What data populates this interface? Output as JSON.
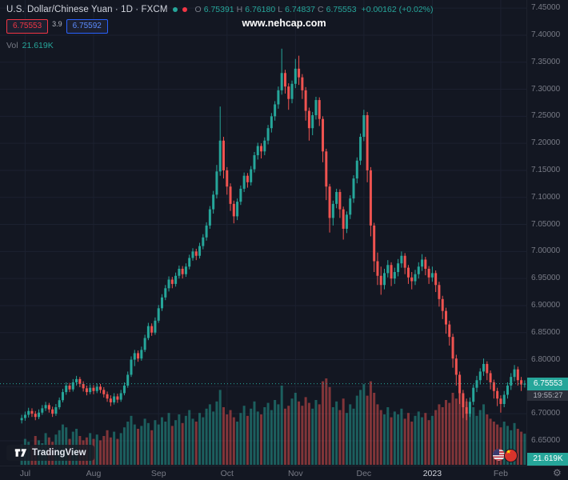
{
  "header": {
    "symbol_title": "U.S. Dollar/Chinese Yuan · 1D · FXCM",
    "ohlc": {
      "o_label": "O",
      "o": "6.75391",
      "h_label": "H",
      "h": "6.76180",
      "l_label": "L",
      "l": "6.74837",
      "c_label": "C",
      "c": "6.75553",
      "change": "+0.00162 (+0.02%)"
    },
    "sell_price": "6.75553",
    "spread": "3.9",
    "buy_price": "6.75592",
    "vol_label": "Vol",
    "vol_value": "21.619K"
  },
  "watermark": "www.nehcap.com",
  "logo": {
    "label": "TradingView"
  },
  "axis": {
    "last_price": "6.75553",
    "countdown": "19:55:27",
    "volume_badge": "21.619K"
  },
  "icons": {
    "settings_gear": "⚙",
    "star": "★"
  },
  "colors": {
    "bg": "#131722",
    "grid": "#1c2130",
    "up": "#26a69a",
    "down": "#ef5350",
    "text": "#787b86",
    "title": "#d1d4dc",
    "sell": "#f23645",
    "buy": "#2962ff"
  },
  "chart_data": {
    "type": "candlestick+volume",
    "symbol": "USDCNH",
    "timeframe": "1D",
    "exchange": "FXCM",
    "last_price": 6.75553,
    "y_ticks": [
      7.45,
      7.4,
      7.35,
      7.3,
      7.25,
      7.2,
      7.15,
      7.1,
      7.05,
      7.0,
      6.95,
      6.9,
      6.85,
      6.8,
      6.75,
      6.7,
      6.65
    ],
    "x_ticks": [
      {
        "label": "Jul",
        "index": 1
      },
      {
        "label": "Aug",
        "index": 21
      },
      {
        "label": "Sep",
        "index": 40
      },
      {
        "label": "Oct",
        "index": 60
      },
      {
        "label": "Nov",
        "index": 80
      },
      {
        "label": "Dec",
        "index": 100
      },
      {
        "label": "2023",
        "index": 120,
        "year": true
      },
      {
        "label": "Feb",
        "index": 140
      }
    ],
    "candles": [
      [
        6.688,
        6.698,
        6.682,
        6.692
      ],
      [
        6.692,
        6.704,
        6.687,
        6.698
      ],
      [
        6.698,
        6.711,
        6.693,
        6.705
      ],
      [
        6.705,
        6.71,
        6.694,
        6.7
      ],
      [
        6.7,
        6.705,
        6.688,
        6.694
      ],
      [
        6.694,
        6.708,
        6.69,
        6.702
      ],
      [
        6.702,
        6.716,
        6.698,
        6.71
      ],
      [
        6.71,
        6.722,
        6.705,
        6.716
      ],
      [
        6.716,
        6.72,
        6.702,
        6.708
      ],
      [
        6.708,
        6.713,
        6.694,
        6.7
      ],
      [
        6.7,
        6.718,
        6.696,
        6.712
      ],
      [
        6.712,
        6.73,
        6.708,
        6.725
      ],
      [
        6.725,
        6.746,
        6.721,
        6.74
      ],
      [
        6.74,
        6.758,
        6.735,
        6.752
      ],
      [
        6.752,
        6.757,
        6.74,
        6.745
      ],
      [
        6.745,
        6.764,
        6.741,
        6.758
      ],
      [
        6.758,
        6.77,
        6.752,
        6.764
      ],
      [
        6.764,
        6.768,
        6.749,
        6.755
      ],
      [
        6.755,
        6.76,
        6.741,
        6.747
      ],
      [
        6.747,
        6.752,
        6.734,
        6.74
      ],
      [
        6.74,
        6.754,
        6.736,
        6.748
      ],
      [
        6.748,
        6.753,
        6.736,
        6.742
      ],
      [
        6.742,
        6.756,
        6.738,
        6.75
      ],
      [
        6.75,
        6.755,
        6.738,
        6.744
      ],
      [
        6.744,
        6.749,
        6.73,
        6.736
      ],
      [
        6.736,
        6.741,
        6.722,
        6.728
      ],
      [
        6.728,
        6.734,
        6.714,
        6.721
      ],
      [
        6.721,
        6.738,
        6.717,
        6.732
      ],
      [
        6.732,
        6.737,
        6.72,
        6.726
      ],
      [
        6.726,
        6.744,
        6.722,
        6.738
      ],
      [
        6.738,
        6.758,
        6.734,
        6.752
      ],
      [
        6.752,
        6.778,
        6.748,
        6.772
      ],
      [
        6.772,
        6.806,
        6.768,
        6.8
      ],
      [
        6.8,
        6.818,
        6.788,
        6.812
      ],
      [
        6.812,
        6.817,
        6.796,
        6.802
      ],
      [
        6.802,
        6.824,
        6.798,
        6.818
      ],
      [
        6.818,
        6.846,
        6.814,
        6.84
      ],
      [
        6.84,
        6.868,
        6.836,
        6.862
      ],
      [
        6.862,
        6.867,
        6.844,
        6.85
      ],
      [
        6.85,
        6.878,
        6.846,
        6.872
      ],
      [
        6.872,
        6.901,
        6.868,
        6.895
      ],
      [
        6.895,
        6.921,
        6.89,
        6.915
      ],
      [
        6.915,
        6.938,
        6.91,
        6.932
      ],
      [
        6.932,
        6.954,
        6.926,
        6.948
      ],
      [
        6.948,
        6.953,
        6.932,
        6.94
      ],
      [
        6.94,
        6.961,
        6.935,
        6.955
      ],
      [
        6.955,
        6.974,
        6.95,
        6.968
      ],
      [
        6.968,
        6.973,
        6.95,
        6.958
      ],
      [
        6.958,
        6.978,
        6.953,
        6.972
      ],
      [
        6.972,
        6.994,
        6.967,
        6.988
      ],
      [
        6.988,
        7.006,
        6.983,
        7.0
      ],
      [
        7.0,
        7.005,
        6.984,
        6.992
      ],
      [
        6.992,
        7.016,
        6.987,
        7.01
      ],
      [
        7.01,
        7.032,
        7.004,
        7.026
      ],
      [
        7.026,
        7.054,
        7.02,
        7.048
      ],
      [
        7.048,
        7.084,
        7.042,
        7.078
      ],
      [
        7.078,
        7.112,
        7.07,
        7.105
      ],
      [
        7.105,
        7.16,
        7.098,
        7.148
      ],
      [
        7.148,
        7.268,
        7.14,
        7.205
      ],
      [
        7.205,
        7.212,
        7.135,
        7.15
      ],
      [
        7.15,
        7.156,
        7.105,
        7.12
      ],
      [
        7.12,
        7.126,
        7.075,
        7.088
      ],
      [
        7.088,
        7.094,
        7.052,
        7.065
      ],
      [
        7.065,
        7.098,
        7.058,
        7.092
      ],
      [
        7.092,
        7.122,
        7.086,
        7.116
      ],
      [
        7.116,
        7.146,
        7.11,
        7.14
      ],
      [
        7.14,
        7.145,
        7.118,
        7.128
      ],
      [
        7.128,
        7.158,
        7.122,
        7.152
      ],
      [
        7.152,
        7.184,
        7.146,
        7.178
      ],
      [
        7.178,
        7.201,
        7.17,
        7.195
      ],
      [
        7.195,
        7.2,
        7.172,
        7.185
      ],
      [
        7.185,
        7.211,
        7.178,
        7.205
      ],
      [
        7.205,
        7.234,
        7.198,
        7.228
      ],
      [
        7.228,
        7.256,
        7.22,
        7.25
      ],
      [
        7.25,
        7.278,
        7.242,
        7.272
      ],
      [
        7.272,
        7.305,
        7.264,
        7.298
      ],
      [
        7.298,
        7.375,
        7.29,
        7.33
      ],
      [
        7.33,
        7.336,
        7.292,
        7.305
      ],
      [
        7.305,
        7.311,
        7.262,
        7.282
      ],
      [
        7.282,
        7.316,
        7.274,
        7.31
      ],
      [
        7.31,
        7.356,
        7.302,
        7.338
      ],
      [
        7.338,
        7.362,
        7.308,
        7.322
      ],
      [
        7.322,
        7.328,
        7.282,
        7.298
      ],
      [
        7.298,
        7.304,
        7.242,
        7.26
      ],
      [
        7.26,
        7.266,
        7.205,
        7.228
      ],
      [
        7.228,
        7.258,
        7.215,
        7.252
      ],
      [
        7.252,
        7.286,
        7.244,
        7.28
      ],
      [
        7.28,
        7.285,
        7.232,
        7.245
      ],
      [
        7.245,
        7.25,
        7.165,
        7.185
      ],
      [
        7.185,
        7.19,
        7.095,
        7.12
      ],
      [
        7.12,
        7.125,
        7.035,
        7.062
      ],
      [
        7.062,
        7.094,
        7.048,
        7.088
      ],
      [
        7.088,
        7.116,
        7.08,
        7.11
      ],
      [
        7.11,
        7.115,
        7.062,
        7.078
      ],
      [
        7.078,
        7.083,
        7.022,
        7.042
      ],
      [
        7.042,
        7.074,
        7.034,
        7.068
      ],
      [
        7.068,
        7.104,
        7.06,
        7.098
      ],
      [
        7.098,
        7.141,
        7.09,
        7.135
      ],
      [
        7.135,
        7.174,
        7.126,
        7.168
      ],
      [
        7.168,
        7.218,
        7.16,
        7.212
      ],
      [
        7.212,
        7.262,
        7.204,
        7.252
      ],
      [
        7.252,
        7.258,
        7.128,
        7.15
      ],
      [
        7.15,
        7.156,
        7.028,
        7.048
      ],
      [
        7.048,
        7.053,
        6.962,
        6.982
      ],
      [
        6.982,
        6.998,
        6.938,
        6.955
      ],
      [
        6.955,
        6.972,
        6.92,
        6.938
      ],
      [
        6.938,
        6.968,
        6.93,
        6.96
      ],
      [
        6.96,
        6.984,
        6.952,
        6.975
      ],
      [
        6.975,
        6.98,
        6.936,
        6.95
      ],
      [
        6.95,
        6.97,
        6.94,
        6.962
      ],
      [
        6.962,
        6.986,
        6.954,
        6.978
      ],
      [
        6.978,
        7.0,
        6.97,
        6.992
      ],
      [
        6.992,
        6.997,
        6.958,
        6.97
      ],
      [
        6.97,
        6.975,
        6.94,
        6.952
      ],
      [
        6.952,
        6.962,
        6.93,
        6.945
      ],
      [
        6.945,
        6.966,
        6.938,
        6.958
      ],
      [
        6.958,
        6.98,
        6.95,
        6.972
      ],
      [
        6.972,
        6.995,
        6.964,
        6.985
      ],
      [
        6.985,
        6.99,
        6.956,
        6.968
      ],
      [
        6.968,
        6.973,
        6.94,
        6.952
      ],
      [
        6.952,
        6.972,
        6.944,
        6.96
      ],
      [
        6.96,
        6.965,
        6.925,
        6.938
      ],
      [
        6.938,
        6.944,
        6.898,
        6.912
      ],
      [
        6.912,
        6.918,
        6.875,
        6.89
      ],
      [
        6.89,
        6.896,
        6.848,
        6.865
      ],
      [
        6.865,
        6.872,
        6.826,
        6.842
      ],
      [
        6.842,
        6.848,
        6.785,
        6.802
      ],
      [
        6.802,
        6.809,
        6.752,
        6.772
      ],
      [
        6.772,
        6.778,
        6.718,
        6.738
      ],
      [
        6.738,
        6.744,
        6.692,
        6.712
      ],
      [
        6.712,
        6.728,
        6.688,
        6.7
      ],
      [
        6.7,
        6.73,
        6.694,
        6.722
      ],
      [
        6.722,
        6.754,
        6.716,
        6.748
      ],
      [
        6.748,
        6.77,
        6.74,
        6.762
      ],
      [
        6.762,
        6.784,
        6.754,
        6.778
      ],
      [
        6.778,
        6.802,
        6.77,
        6.792
      ],
      [
        6.792,
        6.797,
        6.762,
        6.775
      ],
      [
        6.775,
        6.78,
        6.745,
        6.758
      ],
      [
        6.758,
        6.763,
        6.728,
        6.742
      ],
      [
        6.742,
        6.748,
        6.714,
        6.728
      ],
      [
        6.728,
        6.734,
        6.702,
        6.718
      ],
      [
        6.718,
        6.742,
        6.712,
        6.735
      ],
      [
        6.735,
        6.758,
        6.728,
        6.752
      ],
      [
        6.752,
        6.775,
        6.744,
        6.768
      ],
      [
        6.768,
        6.79,
        6.76,
        6.782
      ],
      [
        6.782,
        6.787,
        6.752,
        6.762
      ],
      [
        6.762,
        6.768,
        6.742,
        6.754
      ],
      [
        6.75391,
        6.7618,
        6.74837,
        6.75553
      ]
    ],
    "volumes_k": [
      14,
      18,
      16,
      13,
      20,
      17,
      15,
      22,
      19,
      16,
      21,
      24,
      28,
      26,
      18,
      23,
      25,
      20,
      17,
      19,
      22,
      18,
      21,
      17,
      20,
      24,
      19,
      23,
      18,
      22,
      26,
      30,
      34,
      28,
      25,
      27,
      32,
      29,
      24,
      31,
      28,
      33,
      30,
      36,
      27,
      31,
      35,
      29,
      34,
      38,
      32,
      30,
      36,
      33,
      39,
      42,
      37,
      44,
      52,
      40,
      35,
      38,
      33,
      30,
      36,
      41,
      34,
      39,
      44,
      37,
      35,
      40,
      43,
      38,
      45,
      42,
      55,
      39,
      41,
      46,
      50,
      44,
      41,
      47,
      43,
      39,
      45,
      42,
      58,
      60,
      54,
      40,
      44,
      38,
      46,
      36,
      42,
      39,
      48,
      52,
      56,
      48,
      58,
      50,
      42,
      38,
      35,
      40,
      33,
      37,
      35,
      39,
      32,
      36,
      30,
      34,
      37,
      33,
      36,
      31,
      34,
      38,
      42,
      40,
      45,
      43,
      50,
      46,
      52,
      48,
      44,
      36,
      40,
      34,
      38,
      42,
      35,
      32,
      30,
      28,
      26,
      30,
      27,
      24,
      29,
      25,
      23,
      21.619
    ]
  }
}
